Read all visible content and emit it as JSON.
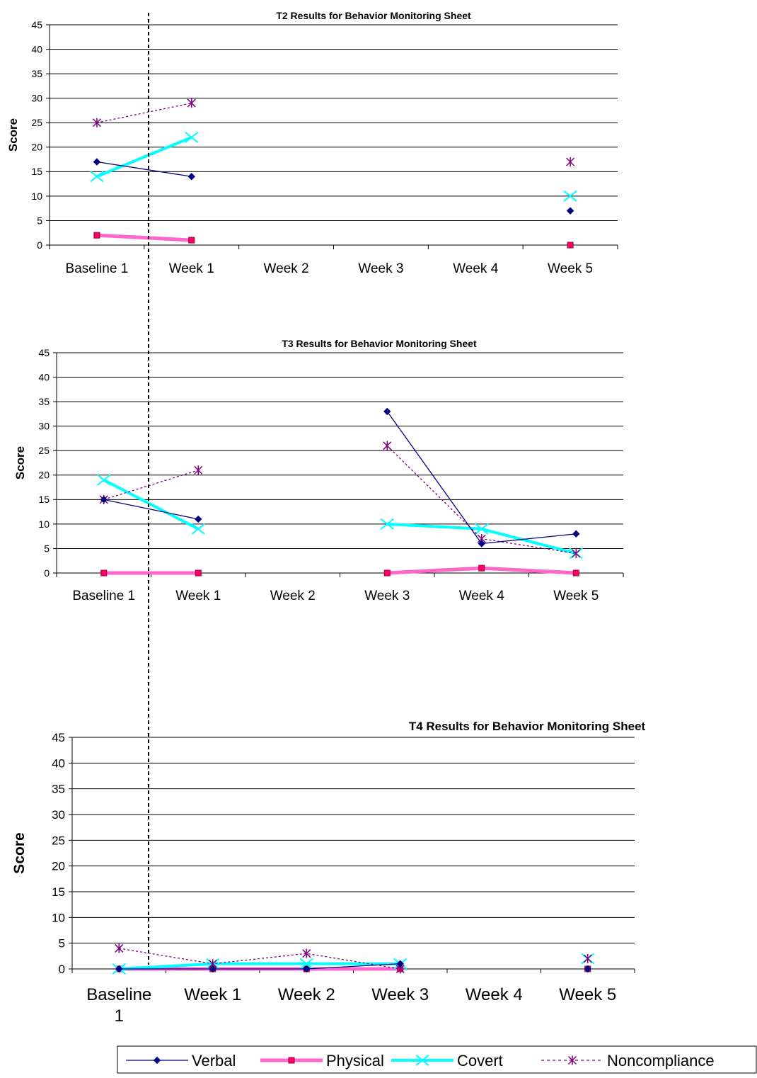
{
  "chart_data": [
    {
      "type": "line",
      "title": "T2 Results for Behavior Monitoring Sheet",
      "xlabel": "",
      "ylabel": "Score",
      "ylim": [
        0,
        45
      ],
      "yticks": [
        0,
        5,
        10,
        15,
        20,
        25,
        30,
        35,
        40,
        45
      ],
      "grid": true,
      "categories": [
        "Baseline 1",
        "Week 1",
        "Week 2",
        "Week 3",
        "Week 4",
        "Week 5"
      ],
      "series": [
        {
          "name": "Verbal",
          "values": [
            17,
            14,
            null,
            null,
            null,
            7
          ]
        },
        {
          "name": "Physical",
          "values": [
            2,
            1,
            null,
            null,
            null,
            0
          ]
        },
        {
          "name": "Covert",
          "values": [
            14,
            22,
            null,
            null,
            null,
            10
          ]
        },
        {
          "name": "Noncompliance",
          "values": [
            25,
            29,
            null,
            null,
            null,
            17
          ]
        }
      ]
    },
    {
      "type": "line",
      "title": "T3 Results for Behavior Monitoring Sheet",
      "xlabel": "",
      "ylabel": "Score",
      "ylim": [
        0,
        45
      ],
      "yticks": [
        0,
        5,
        10,
        15,
        20,
        25,
        30,
        35,
        40,
        45
      ],
      "grid": true,
      "categories": [
        "Baseline 1",
        "Week 1",
        "Week 2",
        "Week 3",
        "Week 4",
        "Week 5"
      ],
      "series": [
        {
          "name": "Verbal",
          "values": [
            15,
            11,
            null,
            33,
            6,
            8
          ]
        },
        {
          "name": "Physical",
          "values": [
            0,
            0,
            null,
            0,
            1,
            0
          ]
        },
        {
          "name": "Covert",
          "values": [
            19,
            9,
            null,
            10,
            9,
            4
          ]
        },
        {
          "name": "Noncompliance",
          "values": [
            15,
            21,
            null,
            26,
            7,
            4
          ]
        }
      ]
    },
    {
      "type": "line",
      "title": "T4 Results for Behavior Monitoring Sheet",
      "xlabel": "",
      "ylabel": "Score",
      "ylim": [
        0,
        45
      ],
      "yticks": [
        0,
        5,
        10,
        15,
        20,
        25,
        30,
        35,
        40,
        45
      ],
      "grid": true,
      "categories": [
        "Baseline 1",
        "Week 1",
        "Week 2",
        "Week 3",
        "Week 4",
        "Week 5"
      ],
      "series": [
        {
          "name": "Verbal",
          "values": [
            0,
            0,
            0,
            1,
            null,
            0
          ]
        },
        {
          "name": "Physical",
          "values": [
            0,
            0,
            0,
            0,
            null,
            0
          ]
        },
        {
          "name": "Covert",
          "values": [
            0,
            1,
            1,
            1,
            null,
            2
          ]
        },
        {
          "name": "Noncompliance",
          "values": [
            4,
            1,
            3,
            0,
            null,
            2
          ]
        }
      ]
    }
  ],
  "legend": {
    "placement": "bottom",
    "items": [
      {
        "label": "Verbal",
        "color": "#000080",
        "marker": "diamond"
      },
      {
        "label": "Physical",
        "color": "#ff66cc",
        "marker": "square"
      },
      {
        "label": "Covert",
        "color": "#00ffff",
        "marker": "x"
      },
      {
        "label": "Noncompliance",
        "color": "#800080",
        "marker": "star",
        "dashed": true
      }
    ]
  },
  "phase_divider": {
    "style": "dashed",
    "between": [
      "Baseline 1",
      "Week 1"
    ]
  }
}
